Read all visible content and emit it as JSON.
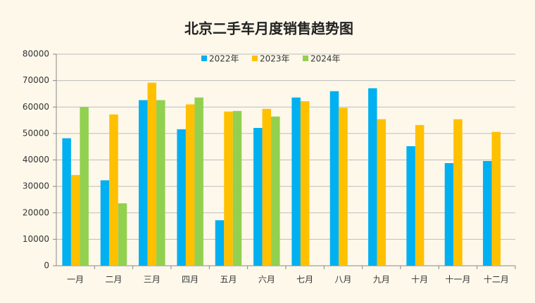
{
  "chart_data": {
    "type": "bar",
    "title": "北京二手车月度销售趋势图",
    "categories": [
      "一月",
      "二月",
      "三月",
      "四月",
      "五月",
      "六月",
      "七月",
      "八月",
      "九月",
      "十月",
      "十一月",
      "十二月"
    ],
    "series": [
      {
        "name": "2022年",
        "color": "#00b0f0",
        "values": [
          48200,
          32300,
          62600,
          51600,
          17200,
          52100,
          63600,
          66000,
          67100,
          45200,
          38800,
          39600
        ]
      },
      {
        "name": "2023年",
        "color": "#ffc000",
        "values": [
          34300,
          57200,
          69200,
          61000,
          58300,
          59300,
          62200,
          59700,
          55400,
          53200,
          55400,
          50600
        ]
      },
      {
        "name": "2024年",
        "color": "#92d050",
        "values": [
          60000,
          23600,
          62600,
          63600,
          58500,
          56400,
          null,
          null,
          null,
          null,
          null,
          null
        ]
      }
    ],
    "ylim": [
      0,
      80000
    ],
    "yticks": [
      0,
      10000,
      20000,
      30000,
      40000,
      50000,
      60000,
      70000,
      80000
    ],
    "grid": true,
    "legend": "top"
  }
}
